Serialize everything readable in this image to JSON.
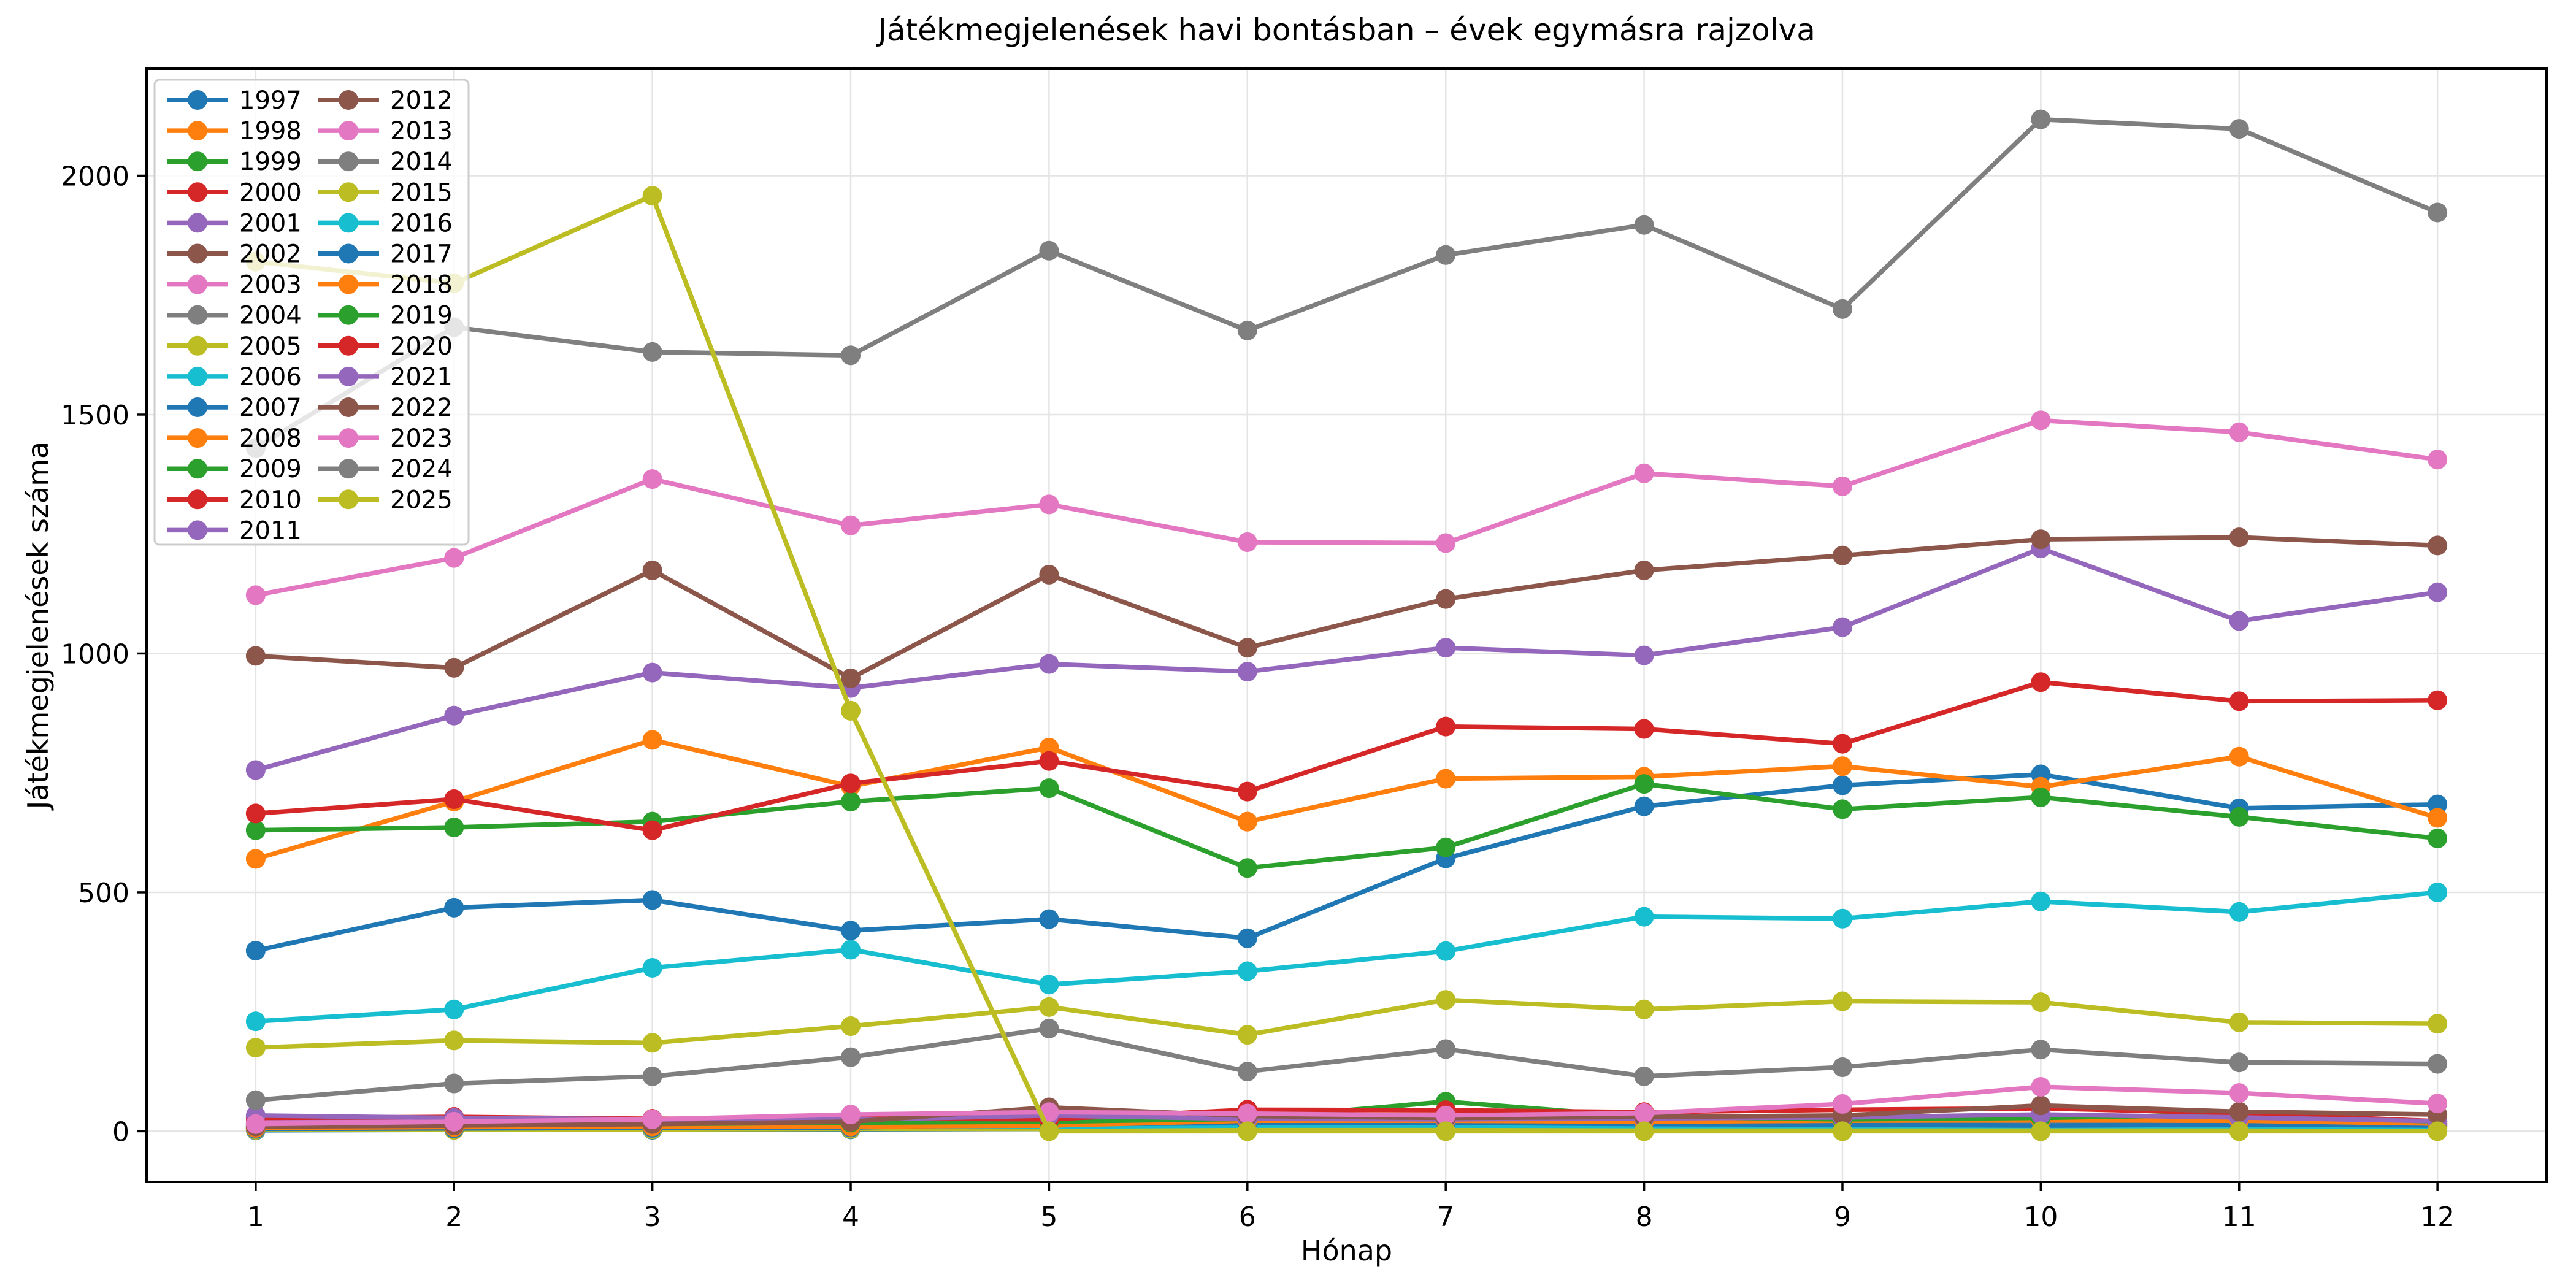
{
  "figure": {
    "background": "#ffffff",
    "grid_color": "#e4e4e4",
    "spine_color": "#000000",
    "legend_border_color": "#cccccc",
    "legend_background": "rgba(255,255,255,0.8)"
  },
  "chart_data": {
    "type": "line",
    "title": "Játékmegjelenések havi bontásban – évek egymásra rajzolva",
    "xlabel": "Hónap",
    "ylabel": "Játékmegjelenések száma",
    "x": [
      1,
      2,
      3,
      4,
      5,
      6,
      7,
      8,
      9,
      10,
      11,
      12
    ],
    "xlim": [
      0.45,
      12.55
    ],
    "ylim": [
      -106,
      2224
    ],
    "yticks": [
      0,
      500,
      1000,
      1500,
      2000
    ],
    "grid": true,
    "legend_position": "upper-left",
    "legend_columns": 2,
    "legend_column_split": 15,
    "series": [
      {
        "name": "1997",
        "color": "#1f77b4",
        "values": [
          2,
          3,
          3,
          4,
          5,
          5,
          6,
          6,
          7,
          8,
          8,
          6
        ]
      },
      {
        "name": "1998",
        "color": "#ff7f0e",
        "values": [
          6,
          7,
          7,
          8,
          9,
          10,
          10,
          11,
          12,
          14,
          13,
          10
        ]
      },
      {
        "name": "1999",
        "color": "#2ca02c",
        "values": [
          9,
          10,
          10,
          11,
          12,
          13,
          13,
          14,
          16,
          18,
          17,
          13
        ]
      },
      {
        "name": "2000",
        "color": "#d62728",
        "values": [
          16,
          17,
          16,
          18,
          19,
          20,
          19,
          21,
          23,
          25,
          22,
          16
        ]
      },
      {
        "name": "2001",
        "color": "#9467bd",
        "values": [
          22,
          21,
          20,
          21,
          23,
          22,
          21,
          23,
          25,
          27,
          24,
          17
        ]
      },
      {
        "name": "2002",
        "color": "#8c564b",
        "values": [
          14,
          15,
          14,
          16,
          17,
          18,
          17,
          19,
          21,
          23,
          21,
          15
        ]
      },
      {
        "name": "2003",
        "color": "#e377c2",
        "values": [
          18,
          20,
          19,
          21,
          22,
          23,
          22,
          24,
          26,
          28,
          25,
          19
        ]
      },
      {
        "name": "2004",
        "color": "#7f7f7f",
        "values": [
          10,
          11,
          10,
          12,
          12,
          13,
          13,
          14,
          15,
          17,
          16,
          12
        ]
      },
      {
        "name": "2005",
        "color": "#bcbd22",
        "values": [
          3,
          3,
          4,
          5,
          5,
          6,
          7,
          7,
          8,
          9,
          8,
          7
        ]
      },
      {
        "name": "2006",
        "color": "#17becf",
        "values": [
          8,
          8,
          9,
          9,
          10,
          12,
          12,
          11,
          11,
          11,
          11,
          10
        ]
      },
      {
        "name": "2007",
        "color": "#1f77b4",
        "values": [
          5,
          6,
          7,
          8,
          15,
          17,
          18,
          15,
          14,
          12,
          14,
          12
        ]
      },
      {
        "name": "2008",
        "color": "#ff7f0e",
        "values": [
          7,
          9,
          10,
          10,
          12,
          22,
          22,
          20,
          22,
          23,
          22,
          16
        ]
      },
      {
        "name": "2009",
        "color": "#2ca02c",
        "values": [
          12,
          14,
          15,
          18,
          20,
          26,
          62,
          30,
          25,
          28,
          35,
          20
        ]
      },
      {
        "name": "2010",
        "color": "#d62728",
        "values": [
          28,
          30,
          26,
          27,
          25,
          45,
          44,
          40,
          45,
          48,
          38,
          21
        ]
      },
      {
        "name": "2011",
        "color": "#9467bd",
        "values": [
          33,
          28,
          25,
          24,
          33,
          26,
          25,
          27,
          29,
          35,
          29,
          21
        ]
      },
      {
        "name": "2012",
        "color": "#8c564b",
        "values": [
          10,
          12,
          15,
          20,
          50,
          32,
          28,
          30,
          33,
          54,
          41,
          35
        ]
      },
      {
        "name": "2013",
        "color": "#e377c2",
        "values": [
          15,
          20,
          25,
          35,
          40,
          37,
          33,
          38,
          57,
          93,
          80,
          58
        ]
      },
      {
        "name": "2014",
        "color": "#7f7f7f",
        "values": [
          65,
          100,
          115,
          155,
          215,
          125,
          172,
          115,
          134,
          171,
          144,
          141
        ]
      },
      {
        "name": "2015",
        "color": "#bcbd22",
        "values": [
          175,
          190,
          185,
          220,
          260,
          202,
          275,
          255,
          272,
          270,
          228,
          225
        ]
      },
      {
        "name": "2016",
        "color": "#17becf",
        "values": [
          230,
          255,
          342,
          380,
          307,
          335,
          377,
          449,
          445,
          481,
          459,
          500
        ]
      },
      {
        "name": "2017",
        "color": "#1f77b4",
        "values": [
          378,
          468,
          484,
          420,
          444,
          404,
          571,
          680,
          724,
          747,
          676,
          684
        ]
      },
      {
        "name": "2018",
        "color": "#ff7f0e",
        "values": [
          570,
          690,
          819,
          722,
          803,
          648,
          738,
          742,
          764,
          721,
          784,
          656
        ]
      },
      {
        "name": "2019",
        "color": "#2ca02c",
        "values": [
          630,
          636,
          648,
          690,
          718,
          551,
          594,
          727,
          674,
          699,
          658,
          613
        ]
      },
      {
        "name": "2020",
        "color": "#d62728",
        "values": [
          665,
          695,
          630,
          728,
          775,
          711,
          847,
          842,
          811,
          940,
          900,
          902
        ]
      },
      {
        "name": "2021",
        "color": "#9467bd",
        "values": [
          756,
          870,
          960,
          928,
          978,
          962,
          1012,
          996,
          1055,
          1220,
          1068,
          1128
        ]
      },
      {
        "name": "2022",
        "color": "#8c564b",
        "values": [
          995,
          970,
          1174,
          948,
          1165,
          1012,
          1114,
          1174,
          1205,
          1239,
          1243,
          1226
        ]
      },
      {
        "name": "2023",
        "color": "#e377c2",
        "values": [
          1122,
          1200,
          1365,
          1268,
          1312,
          1233,
          1231,
          1377,
          1350,
          1488,
          1463,
          1406
        ]
      },
      {
        "name": "2024",
        "color": "#7f7f7f",
        "values": [
          1430,
          1683,
          1631,
          1624,
          1843,
          1676,
          1834,
          1897,
          1721,
          2118,
          2098,
          1923
        ]
      },
      {
        "name": "2025",
        "color": "#bcbd22",
        "values": [
          1820,
          1775,
          1958,
          880,
          0,
          0,
          0,
          0,
          0,
          0,
          0,
          0
        ]
      }
    ]
  }
}
